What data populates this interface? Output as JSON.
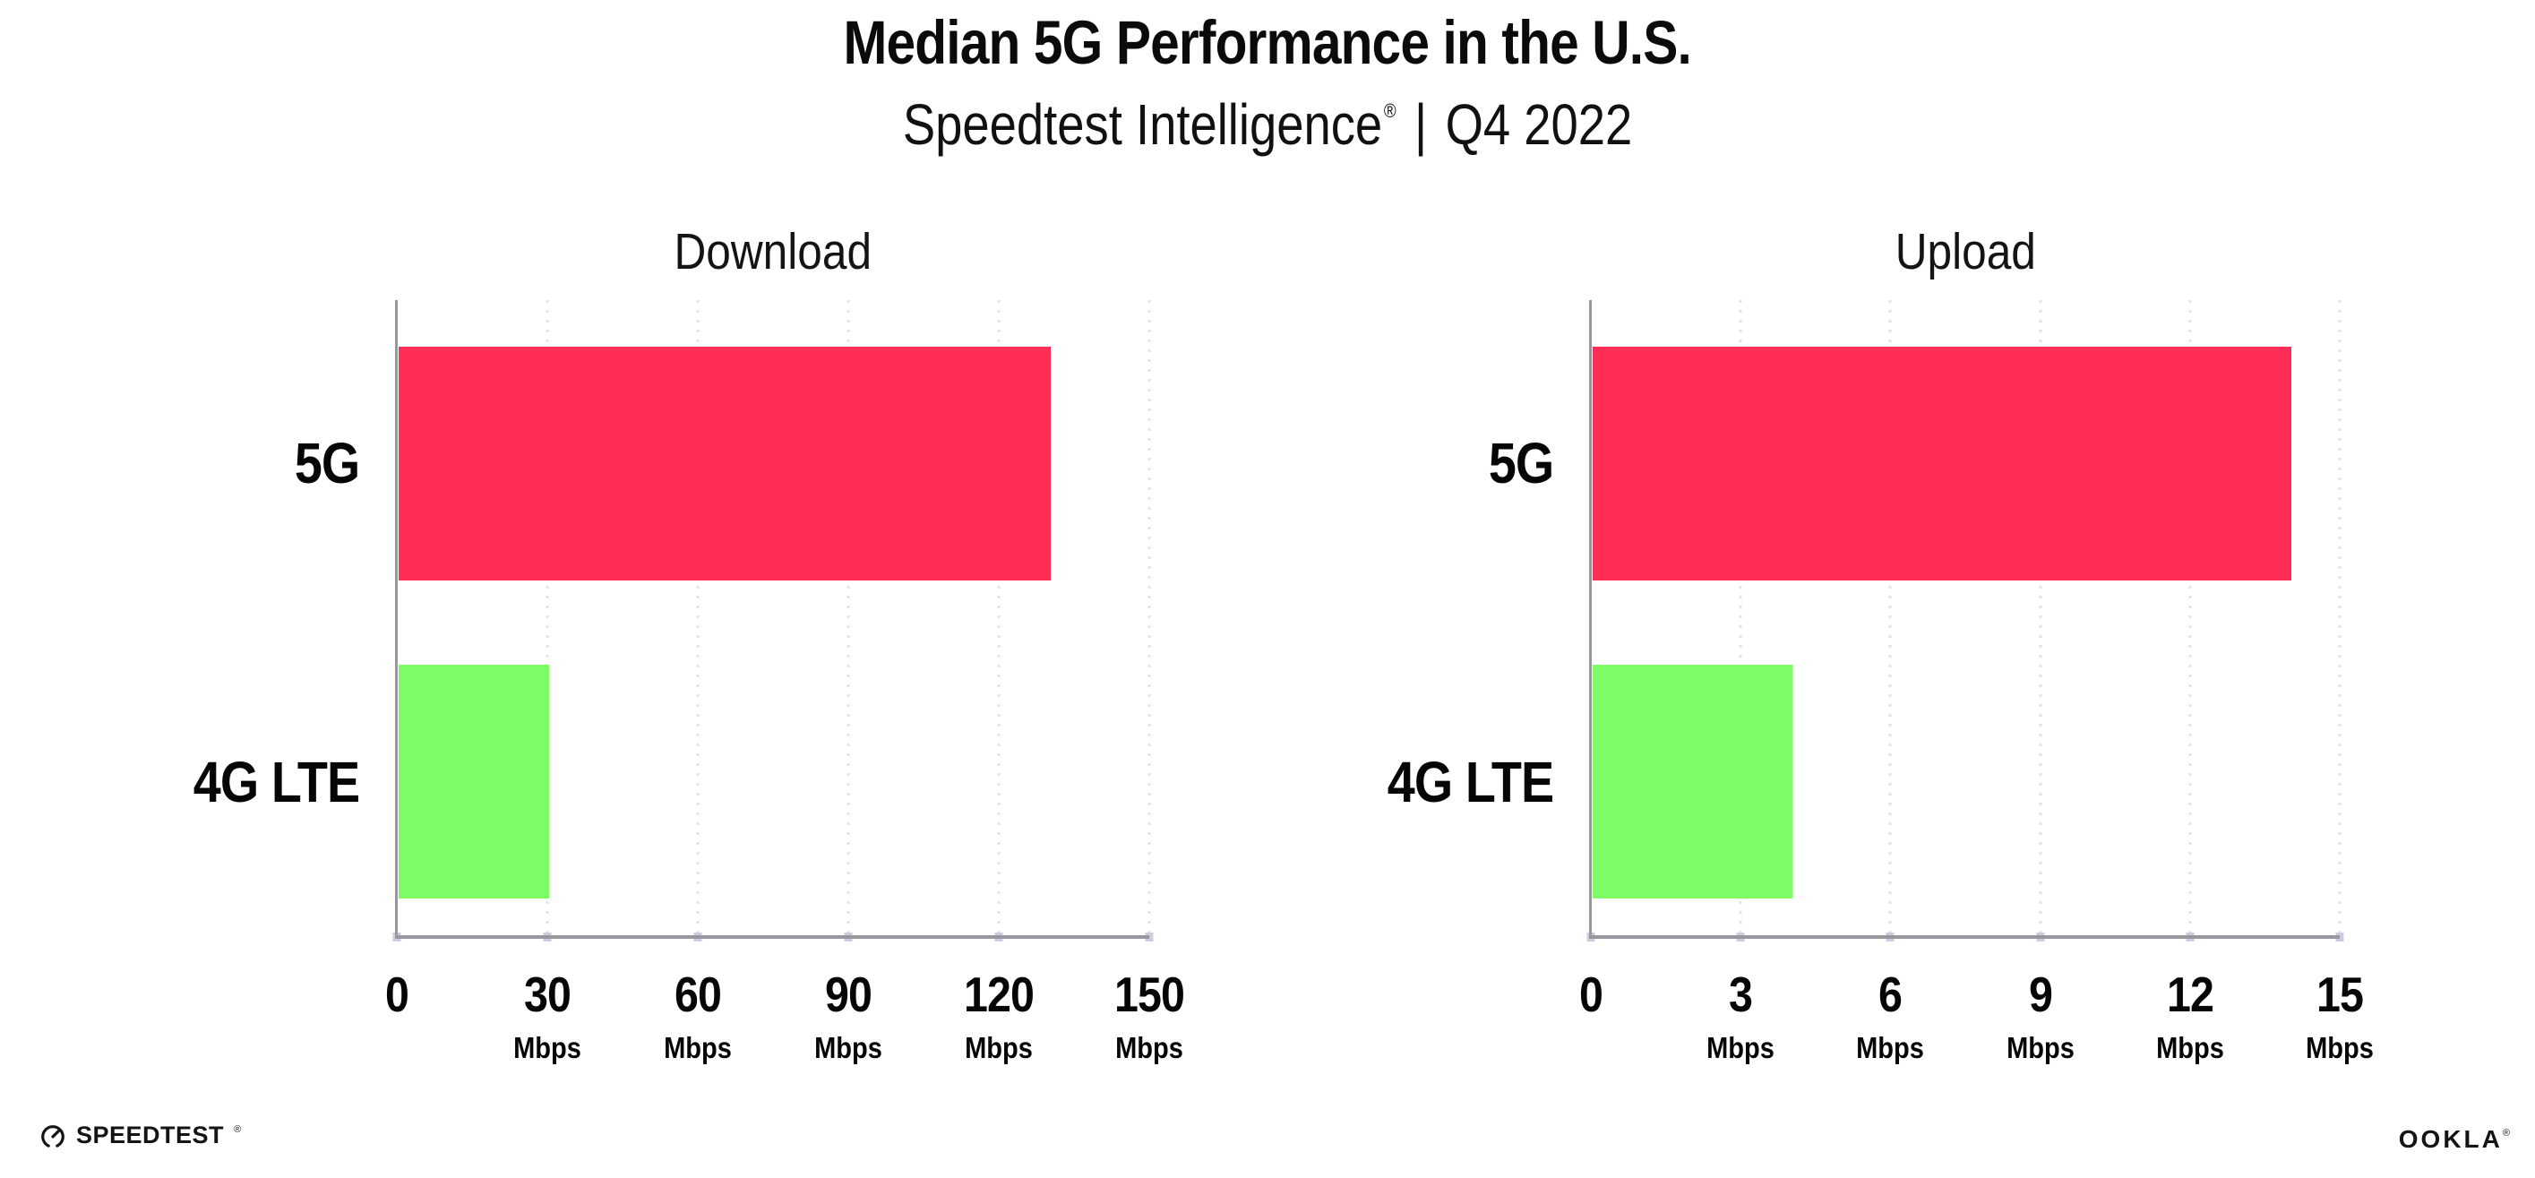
{
  "header": {
    "title": "Median 5G Performance in the U.S.",
    "subtitle": {
      "brand": "Speedtest Intelligence",
      "registered_mark": "®",
      "separator": "|",
      "period": "Q4 2022"
    }
  },
  "chart_data": [
    {
      "type": "bar",
      "orientation": "horizontal",
      "title": "Download",
      "categories": [
        "5G",
        "4G LTE"
      ],
      "values": [
        130,
        30
      ],
      "unit": "Mbps",
      "xlabel": "",
      "ylabel": "",
      "xlim": [
        0,
        150
      ],
      "xticks": [
        0,
        30,
        60,
        90,
        120,
        150
      ],
      "bar_colors": [
        "#FF2E57",
        "#7EFC66"
      ],
      "grid": "dotted-vertical",
      "legend": "none"
    },
    {
      "type": "bar",
      "orientation": "horizontal",
      "title": "Upload",
      "categories": [
        "5G",
        "4G LTE"
      ],
      "values": [
        14,
        4
      ],
      "unit": "Mbps",
      "xlabel": "",
      "ylabel": "",
      "xlim": [
        0,
        15
      ],
      "xticks": [
        0,
        3,
        6,
        9,
        12,
        15
      ],
      "bar_colors": [
        "#FF2E57",
        "#7EFC66"
      ],
      "grid": "dotted-vertical",
      "legend": "none"
    }
  ],
  "colors": {
    "bar_5g": "#FF2E57",
    "bar_4g_lte": "#7EFC66",
    "axis": "#97979E",
    "gridline": "#E2E3EA",
    "tick_marker": "#CBCDDE",
    "text": "#0B0B0B",
    "background": "#FFFFFF"
  },
  "footer": {
    "speedtest_text": "SPEEDTEST",
    "speedtest_mark": "®",
    "speedtest_icon": "gauge-icon",
    "ookla_text": "OOKLA",
    "ookla_mark": "®"
  }
}
